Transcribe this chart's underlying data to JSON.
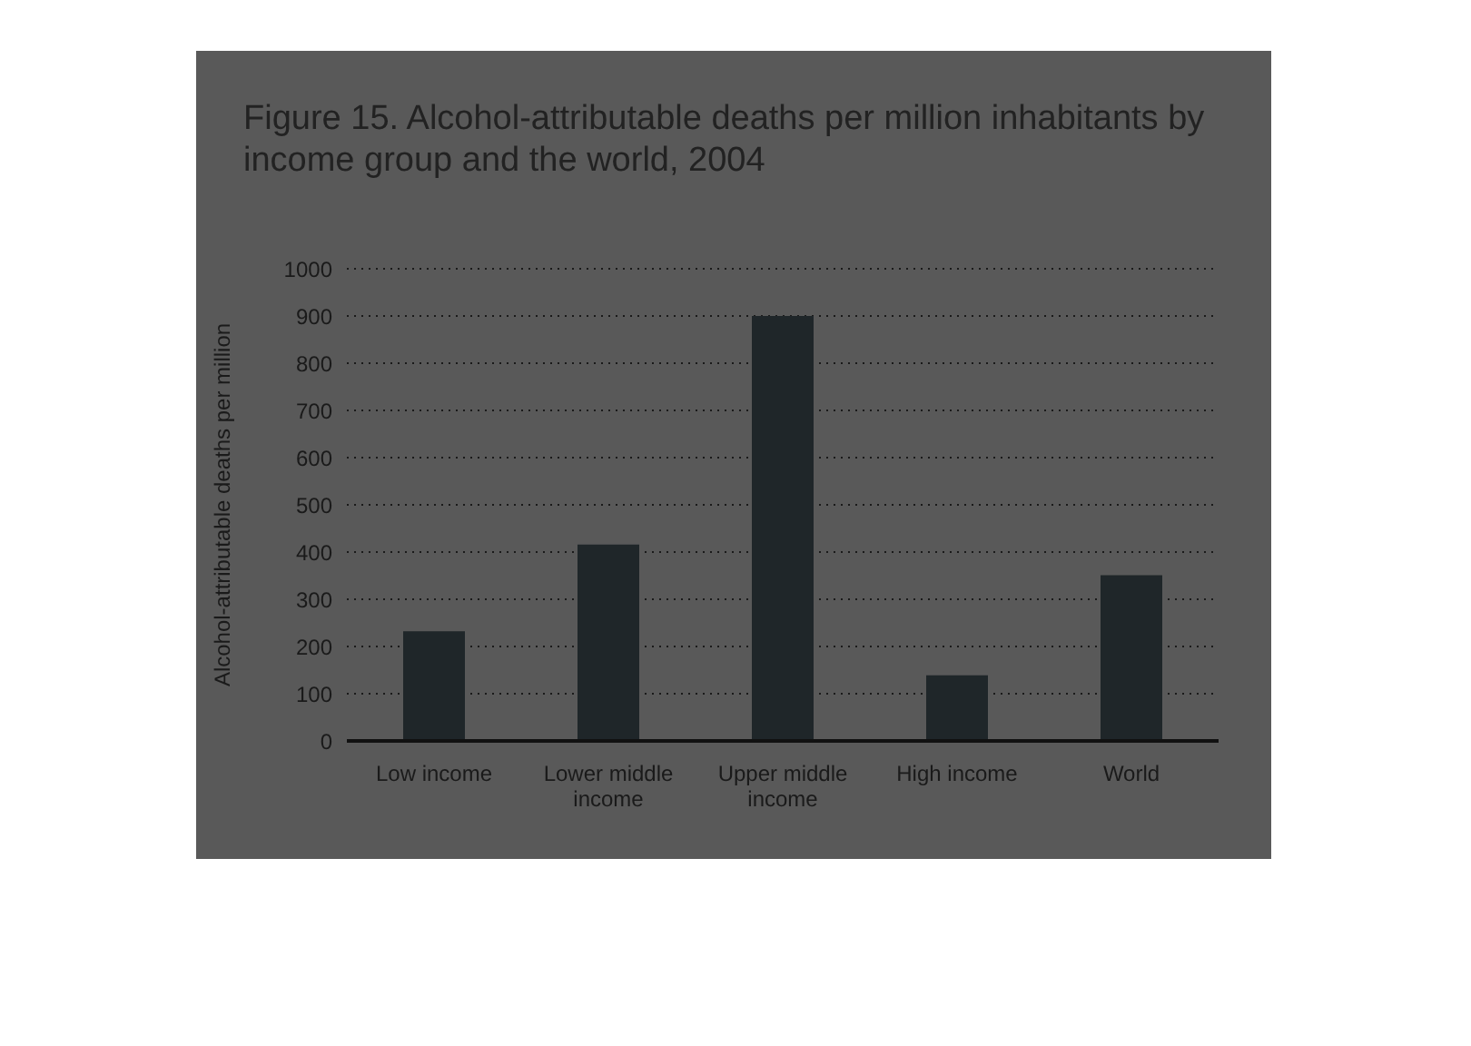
{
  "chart_data": {
    "type": "bar",
    "title": "Figure 15. Alcohol-attributable deaths per million inhabitants by income group and the world, 2004",
    "ylabel": "Alcohol-attributable deaths per million",
    "categories": [
      "Low income",
      "Lower middle income",
      "Upper middle income",
      "High income",
      "World"
    ],
    "values": [
      232,
      416,
      900,
      139,
      351
    ],
    "color": "#1f2629",
    "ylim": [
      0,
      1000
    ],
    "yticks": [
      0,
      100,
      200,
      300,
      400,
      500,
      600,
      700,
      800,
      900,
      1000
    ],
    "grid": "y",
    "legend": false
  }
}
